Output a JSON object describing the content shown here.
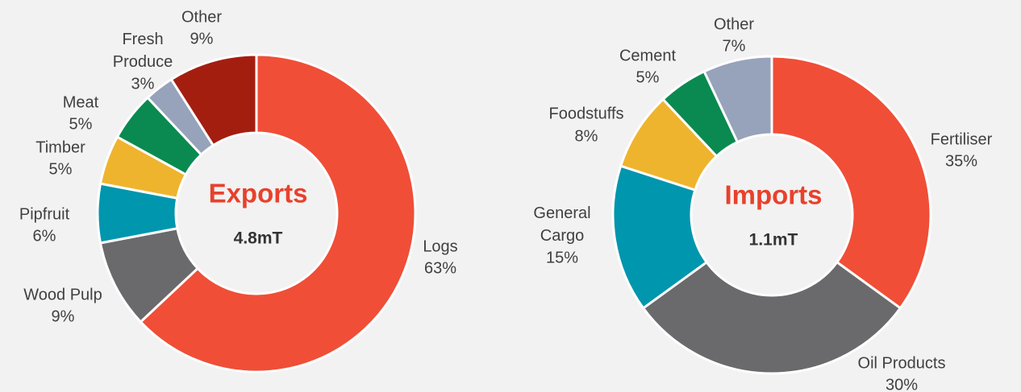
{
  "chart_data": [
    {
      "type": "pie",
      "title": "Exports",
      "subtitle": "4.8mT",
      "categories": [
        "Logs",
        "Wood Pulp",
        "Pipfruit",
        "Timber",
        "Meat",
        "Fresh Produce",
        "Other"
      ],
      "values": [
        63,
        9,
        6,
        5,
        5,
        3,
        9
      ],
      "value_labels": [
        "63%",
        "9%",
        "6%",
        "5%",
        "5%",
        "3%",
        "9%"
      ],
      "colors": [
        "#f04e37",
        "#6a6a6c",
        "#0096ae",
        "#efb42e",
        "#0a8a50",
        "#97a3ba",
        "#a41e10"
      ]
    },
    {
      "type": "pie",
      "title": "Imports",
      "subtitle": "1.1mT",
      "categories": [
        "Fertiliser",
        "Oil Products",
        "General Cargo",
        "Foodstuffs",
        "Cement",
        "Other"
      ],
      "values": [
        35,
        30,
        15,
        8,
        5,
        7
      ],
      "value_labels": [
        "35%",
        "30%",
        "15%",
        "8%",
        "5%",
        "7%"
      ],
      "colors": [
        "#f04e37",
        "#6a6a6c",
        "#0096ae",
        "#efb42e",
        "#0a8a50",
        "#97a3ba"
      ]
    }
  ]
}
